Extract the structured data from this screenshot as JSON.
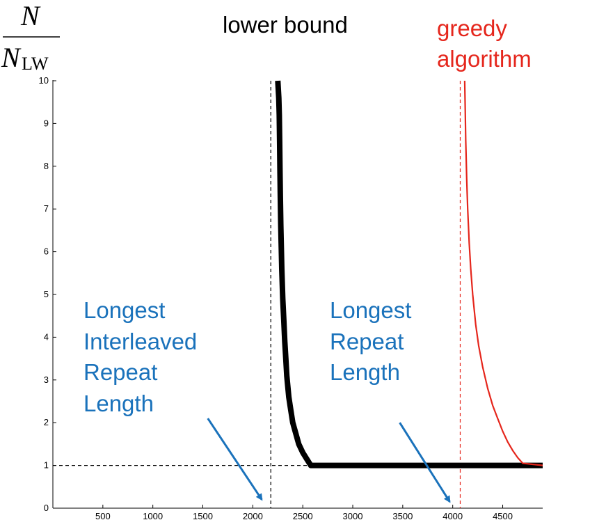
{
  "chart_data": {
    "type": "line",
    "title": "",
    "xlabel": "",
    "ylabel": {
      "numerator": "N",
      "denominator": "N",
      "denominator_sub": "LW"
    },
    "xlim": [
      0,
      4900
    ],
    "ylim": [
      0,
      10
    ],
    "xticks": [
      500,
      1000,
      1500,
      2000,
      2500,
      3000,
      3500,
      4000,
      4500
    ],
    "yticks": [
      0,
      1,
      2,
      3,
      4,
      5,
      6,
      7,
      8,
      9,
      10
    ],
    "grid": false,
    "colors": {
      "lower_bound": "#000000",
      "greedy": "#e5261c",
      "annotation": "#1a72bb"
    },
    "series": [
      {
        "key": "lower_bound",
        "x": [
          2250,
          2260,
          2265,
          2268,
          2272,
          2275,
          2280,
          2285,
          2290,
          2300,
          2310,
          2320,
          2330,
          2340,
          2360,
          2380,
          2400,
          2430,
          2460,
          2500,
          2540,
          2580,
          4900
        ],
        "y": [
          10,
          9.6,
          9.2,
          8.6,
          7.9,
          7.3,
          6.6,
          6.1,
          5.6,
          4.9,
          4.4,
          3.9,
          3.5,
          3.1,
          2.6,
          2.3,
          2.0,
          1.75,
          1.5,
          1.3,
          1.15,
          1.0,
          1.0
        ]
      },
      {
        "key": "greedy",
        "x": [
          4120,
          4125,
          4130,
          4140,
          4150,
          4165,
          4180,
          4200,
          4230,
          4260,
          4300,
          4350,
          4400,
          4450,
          4500,
          4550,
          4600,
          4650,
          4700,
          4900
        ],
        "y": [
          10,
          9.3,
          8.6,
          7.7,
          7.0,
          6.2,
          5.6,
          5.0,
          4.3,
          3.8,
          3.3,
          2.8,
          2.4,
          2.1,
          1.8,
          1.55,
          1.35,
          1.18,
          1.05,
          1.0
        ]
      }
    ],
    "reference_lines": [
      {
        "orientation": "vertical",
        "x": 2180,
        "color": "#000000"
      },
      {
        "orientation": "vertical",
        "x": 4075,
        "color": "#e5261c"
      },
      {
        "orientation": "horizontal",
        "y": 1,
        "x_from": 0,
        "x_to": 2580,
        "color": "#000000"
      }
    ],
    "annotations": {
      "lower_bound_label": [
        "lower bound"
      ],
      "greedy_label": [
        "greedy",
        "algorithm"
      ],
      "interleaved_label": [
        "Longest",
        "Interleaved",
        "Repeat",
        "Length"
      ],
      "repeat_label": [
        "Longest",
        "Repeat",
        "Length"
      ]
    },
    "arrows": [
      {
        "key": "interleaved",
        "from": [
          1550,
          2.1
        ],
        "to": [
          2090,
          0.2
        ]
      },
      {
        "key": "repeat",
        "from": [
          3470,
          2.0
        ],
        "to": [
          3970,
          0.15
        ]
      }
    ]
  }
}
